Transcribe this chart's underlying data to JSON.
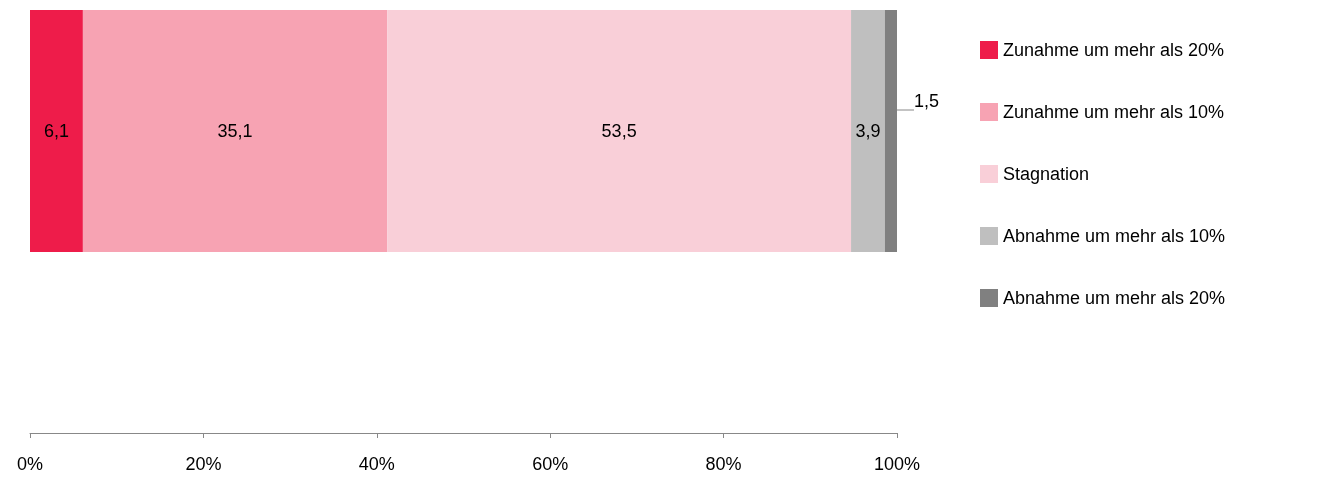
{
  "chart_data": {
    "type": "bar",
    "orientation": "horizontal",
    "stacked": true,
    "categories": [
      null
    ],
    "series": [
      {
        "name": "Zunahme um mehr als 20%",
        "color": "#ee1c4a",
        "values": [
          6.1
        ],
        "value_labels": [
          "6,1"
        ]
      },
      {
        "name": "Zunahme um mehr als 10%",
        "color": "#f7a3b3",
        "values": [
          35.1
        ],
        "value_labels": [
          "35,1"
        ]
      },
      {
        "name": "Stagnation",
        "color": "#f9cfd8",
        "values": [
          53.5
        ],
        "value_labels": [
          "53,5"
        ]
      },
      {
        "name": "Abnahme um mehr als 10%",
        "color": "#bfbfbf",
        "values": [
          3.9
        ],
        "value_labels": [
          "3,9"
        ]
      },
      {
        "name": "Abnahme um mehr als 20%",
        "color": "#808080",
        "values": [
          1.5
        ],
        "value_labels": [
          "1,5"
        ]
      }
    ],
    "xlim": [
      0,
      100
    ],
    "xticks": [
      {
        "value": 0,
        "label": "0%"
      },
      {
        "value": 20,
        "label": "20%"
      },
      {
        "value": 40,
        "label": "40%"
      },
      {
        "value": 60,
        "label": "60%"
      },
      {
        "value": 80,
        "label": "80%"
      },
      {
        "value": 100,
        "label": "100%"
      }
    ],
    "legend": "right",
    "grid": false
  }
}
